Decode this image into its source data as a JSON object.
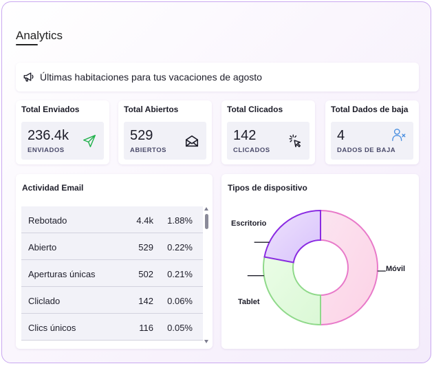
{
  "page": {
    "title": "Analytics"
  },
  "banner": {
    "text": "Últimas habitaciones para tus vacaciones de agosto",
    "icon": "megaphone-icon"
  },
  "stats": [
    {
      "title": "Total Enviados",
      "value": "236.4k",
      "label": "ENVIADOS",
      "icon": "send-icon",
      "icon_color": "#22b14c"
    },
    {
      "title": "Total Abiertos",
      "value": "529",
      "label": "ABIERTOS",
      "icon": "open-envelope-icon",
      "icon_color": "#1c1c28"
    },
    {
      "title": "Total Clicados",
      "value": "142",
      "label": "CLICADOS",
      "icon": "cursor-click-icon",
      "icon_color": "#1c1c28"
    },
    {
      "title": "Total Dados de baja",
      "value": "4",
      "label": "DADOS DE BAJA",
      "icon": "user-remove-icon",
      "icon_color": "#4a8fe0"
    }
  ],
  "activity": {
    "title": "Actividad Email",
    "rows": [
      {
        "name": "Rebotado",
        "value": "4.4k",
        "percent": "1.88%"
      },
      {
        "name": "Abierto",
        "value": "529",
        "percent": "0.22%"
      },
      {
        "name": "Aperturas únicas",
        "value": "502",
        "percent": "0.21%"
      },
      {
        "name": "Cliclado",
        "value": "142",
        "percent": "0.06%"
      },
      {
        "name": "Clics únicos",
        "value": "116",
        "percent": "0.05%"
      }
    ]
  },
  "devices": {
    "title": "Tipos de dispositivo",
    "segments": [
      {
        "label": "Móvil",
        "share": 0.5,
        "fill_start": "#fbe4f0",
        "fill_end": "#fdd2e6",
        "stroke": "#e879c9"
      },
      {
        "label": "Tablet",
        "share": 0.28,
        "fill_start": "#eafde6",
        "fill_end": "#dbf8d6",
        "stroke": "#8fd98a"
      },
      {
        "label": "Escritorio",
        "share": 0.22,
        "fill_start": "#efe3fd",
        "fill_end": "#d7c2fb",
        "stroke": "#8a2be2"
      }
    ]
  }
}
